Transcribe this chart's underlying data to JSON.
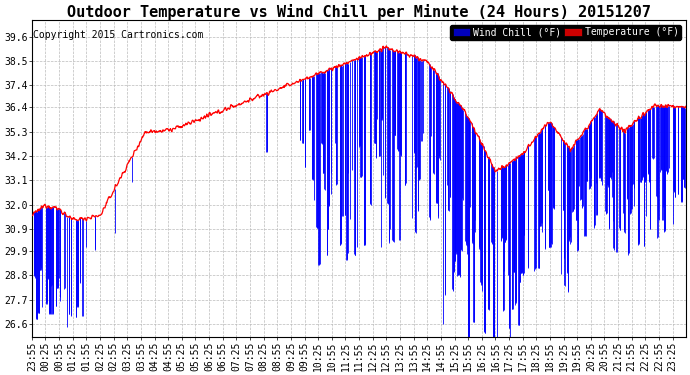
{
  "title": "Outdoor Temperature vs Wind Chill per Minute (24 Hours) 20151207",
  "copyright": "Copyright 2015 Cartronics.com",
  "legend_wind": "Wind Chill (°F)",
  "legend_temp": "Temperature (°F)",
  "wind_chill_color": "#0000ff",
  "temp_color": "#ff0000",
  "legend_wind_bg": "#0000bb",
  "legend_temp_bg": "#cc0000",
  "background_color": "#ffffff",
  "grid_color": "#bbbbbb",
  "ylim_min": 26.0,
  "ylim_max": 40.35,
  "yticks": [
    39.6,
    38.5,
    37.4,
    36.4,
    35.3,
    34.2,
    33.1,
    32.0,
    30.9,
    29.9,
    28.8,
    27.7,
    26.6
  ],
  "title_fontsize": 11,
  "copyright_fontsize": 7,
  "tick_fontsize": 7
}
